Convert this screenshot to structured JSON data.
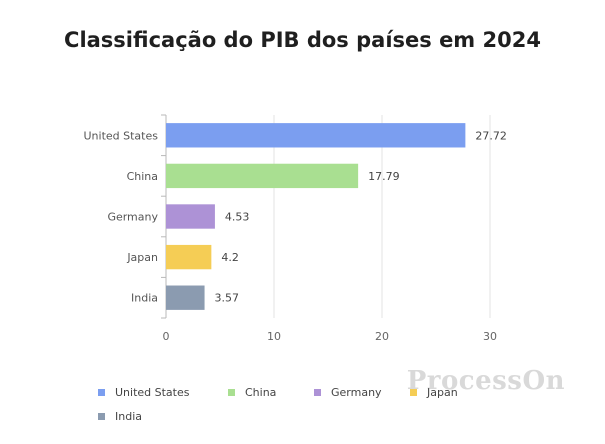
{
  "chart_data": {
    "type": "bar",
    "orientation": "horizontal",
    "title": "Classificação do PIB dos países em 2024",
    "categories": [
      "United States",
      "China",
      "Germany",
      "Japan",
      "India"
    ],
    "values": [
      27.72,
      17.79,
      4.53,
      4.2,
      3.57
    ],
    "value_labels": [
      "27.72",
      "17.79",
      "4.53",
      "4.2",
      "3.57"
    ],
    "colors": [
      "#7b9ef0",
      "#a9df91",
      "#ad92d6",
      "#f5cd55",
      "#8b9bb0"
    ],
    "xticks": [
      "0",
      "10",
      "20",
      "30"
    ],
    "xlim": [
      0,
      30
    ],
    "grid": "vertical",
    "legend": {
      "placement": "bottom",
      "entries": [
        "United States",
        "China",
        "Germany",
        "Japan",
        "India"
      ]
    }
  },
  "watermark": "ProcessOn"
}
